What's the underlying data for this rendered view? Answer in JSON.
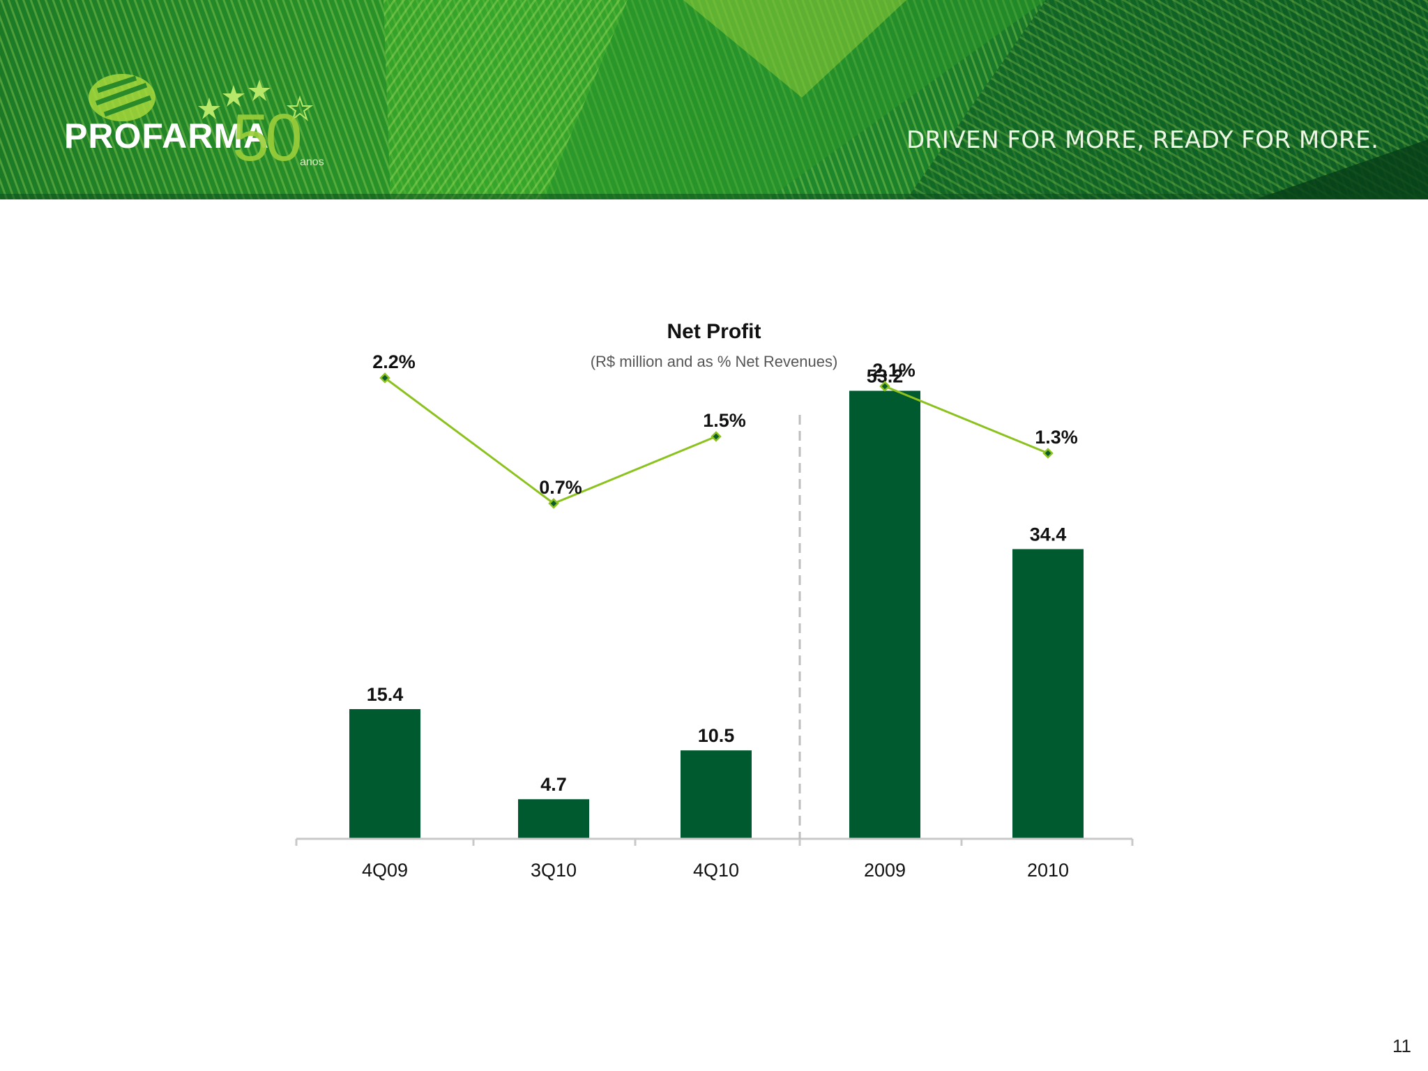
{
  "header": {
    "brand": "PROFARMA",
    "brand_50": "50",
    "brand_anos": "anos",
    "tagline": "DRIVEN FOR MORE, READY FOR MORE."
  },
  "colors": {
    "bar": "#005a2f",
    "line": "#8cc21e",
    "marker_fill": "#0b5b2e",
    "axis": "#c8c8c8",
    "divider": "#bdbdbd"
  },
  "chart_data": {
    "type": "bar+line",
    "title": "Net Profit",
    "subtitle": "(R$ million and as % Net Revenues)",
    "categories": [
      "4Q09",
      "3Q10",
      "4Q10",
      "2009",
      "2010"
    ],
    "groups": [
      [
        "4Q09",
        "3Q10",
        "4Q10"
      ],
      [
        "2009",
        "2010"
      ]
    ],
    "series": [
      {
        "type": "bar",
        "values": [
          15.4,
          4.7,
          10.5,
          53.2,
          34.4
        ],
        "labels": [
          "15.4",
          "4.7",
          "10.5",
          "53.2",
          "34.4"
        ]
      },
      {
        "type": "line",
        "values": [
          2.2,
          0.7,
          1.5,
          2.1,
          1.3
        ],
        "labels": [
          "2.2%",
          "0.7%",
          "1.5%",
          "2.1%",
          "1.3%"
        ]
      }
    ],
    "grid": false,
    "legend": "none"
  },
  "page_number": "11"
}
